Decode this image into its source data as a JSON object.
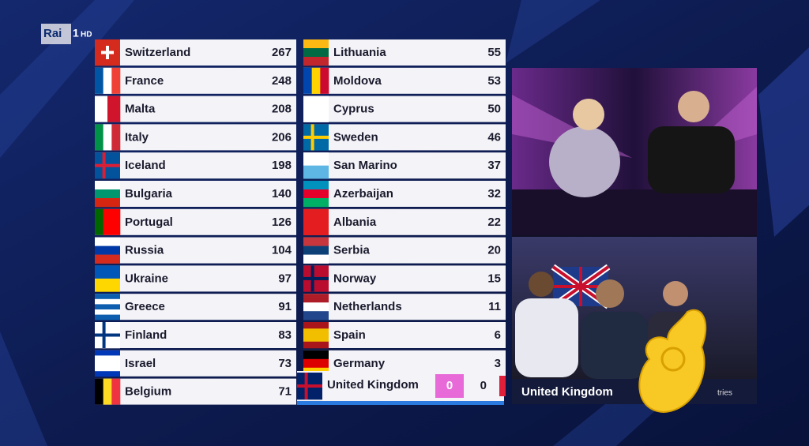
{
  "channel_logo": {
    "name": "Rai",
    "number": "1",
    "quality": "HD"
  },
  "scoreboard": {
    "left": [
      {
        "country": "Switzerland",
        "score": 267
      },
      {
        "country": "France",
        "score": 248
      },
      {
        "country": "Malta",
        "score": 208
      },
      {
        "country": "Italy",
        "score": 206
      },
      {
        "country": "Iceland",
        "score": 198
      },
      {
        "country": "Bulgaria",
        "score": 140
      },
      {
        "country": "Portugal",
        "score": 126
      },
      {
        "country": "Russia",
        "score": 104
      },
      {
        "country": "Ukraine",
        "score": 97
      },
      {
        "country": "Greece",
        "score": 91
      },
      {
        "country": "Finland",
        "score": 83
      },
      {
        "country": "Israel",
        "score": 73
      },
      {
        "country": "Belgium",
        "score": 71
      }
    ],
    "right": [
      {
        "country": "Lithuania",
        "score": 55
      },
      {
        "country": "Moldova",
        "score": 53
      },
      {
        "country": "Cyprus",
        "score": 50
      },
      {
        "country": "Sweden",
        "score": 46
      },
      {
        "country": "San Marino",
        "score": 37
      },
      {
        "country": "Azerbaijan",
        "score": 32
      },
      {
        "country": "Albania",
        "score": 22
      },
      {
        "country": "Serbia",
        "score": 20
      },
      {
        "country": "Norway",
        "score": 15
      },
      {
        "country": "Netherlands",
        "score": 11
      },
      {
        "country": "Spain",
        "score": 6
      },
      {
        "country": "Germany",
        "score": 3
      }
    ],
    "current": {
      "country": "United Kingdom",
      "jury_points": 0,
      "total": 0
    }
  },
  "video": {
    "caption": "United Kingdom",
    "subcaption": "tries"
  }
}
